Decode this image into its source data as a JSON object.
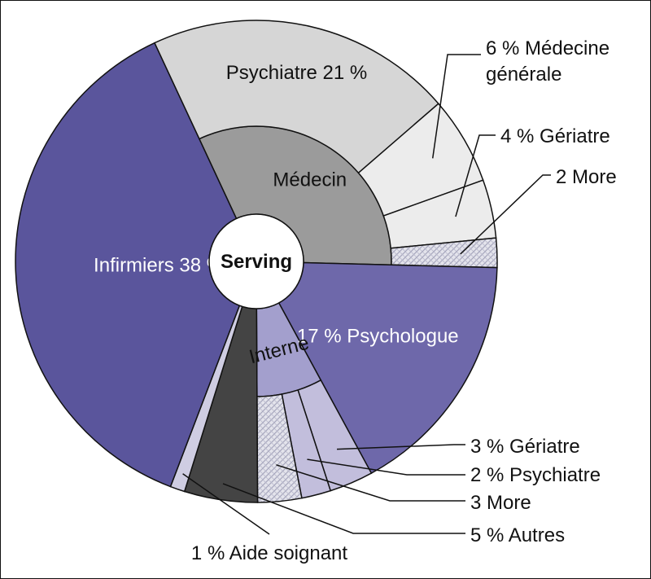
{
  "chart_data": {
    "type": "sunburst",
    "center_label": "Serving",
    "units": "%",
    "inner_ring": [
      {
        "name": "Médecin",
        "label_text": "Médecin",
        "value": 33,
        "color": "#9b9b9b",
        "children": [
          {
            "name": "Psychiatre",
            "value": 21,
            "label_text": "Psychiatre 21 %",
            "color": "#d6d6d6"
          },
          {
            "name": "Médecine générale",
            "value": 6,
            "label_lines": [
              "6 % Médecine",
              "générale"
            ],
            "color": "#ececec"
          },
          {
            "name": "Gériatre",
            "value": 4,
            "label_text": "4 % Gériatre",
            "color": "#ececec"
          },
          {
            "name": "More",
            "value": 2,
            "label_text": "2 More",
            "color": "#cfcfdc",
            "pattern": true
          }
        ]
      },
      {
        "name": "Psychologue",
        "value": 17,
        "label_text": "17 % Psychologue",
        "color": "#6e68aa",
        "children": []
      },
      {
        "name": "Interne",
        "label_text": "Interne",
        "value": 8,
        "color": "#a39fcd",
        "children": [
          {
            "name": "Gériatre",
            "value": 3,
            "label_text": "3 % Gériatre",
            "color": "#c2bedc"
          },
          {
            "name": "Psychiatre",
            "value": 2,
            "label_text": "2 % Psychiatre",
            "color": "#c2bedc"
          },
          {
            "name": "More",
            "value": 3,
            "label_text": "3 More",
            "color": "#c2bedc",
            "pattern": true
          }
        ]
      },
      {
        "name": "Autres",
        "value": 5,
        "label_text": "5 % Autres",
        "color": "#444444",
        "children": []
      },
      {
        "name": "Aide soignant",
        "value": 1,
        "label_text": "1 % Aide soignant",
        "color": "#cfcde2",
        "children": []
      },
      {
        "name": "Infirmiers",
        "value": 38,
        "label_text": "Infirmiers 38 %",
        "color": "#5a559c",
        "children": []
      }
    ]
  }
}
